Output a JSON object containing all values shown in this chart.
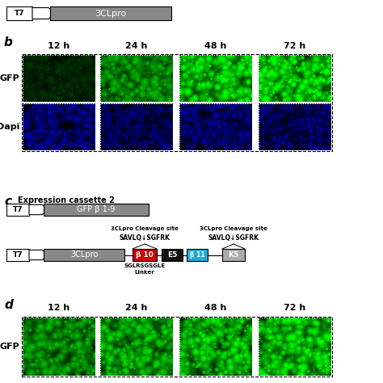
{
  "background_color": "#ffffff",
  "panel_b_label": "b",
  "panel_c_label": "c",
  "panel_d_label": "d",
  "time_labels": [
    "12 h",
    "24 h",
    "48 h",
    "72 h"
  ],
  "gfp_label": "GFP",
  "dapi_label": "Dapi",
  "cassette2_label": "Expression cassette 2",
  "t7_label": "T7",
  "clpro_label": "3CLpro",
  "gfp_b19_label": "GFP β 1-9",
  "beta10_label": "β 10",
  "e5_label": "E5",
  "beta11_label": "β 11",
  "k5_label": "K5",
  "cleavage_site_label": "3CLpro Cleavage site",
  "savlq_label": "SAVLQ↓SGFRK",
  "linker_top": "SGLRSGSGLE",
  "linker_bot": "Linker",
  "gray_color": "#888888",
  "red_color": "#cc0000",
  "black_color": "#111111",
  "cyan_color": "#22aadd",
  "lightgray_color": "#aaaaaa",
  "panel_b_gfp_brightness": [
    0.15,
    0.55,
    0.75,
    0.8
  ],
  "panel_d_gfp_brightness": [
    0.55,
    0.65,
    0.7,
    0.75
  ]
}
